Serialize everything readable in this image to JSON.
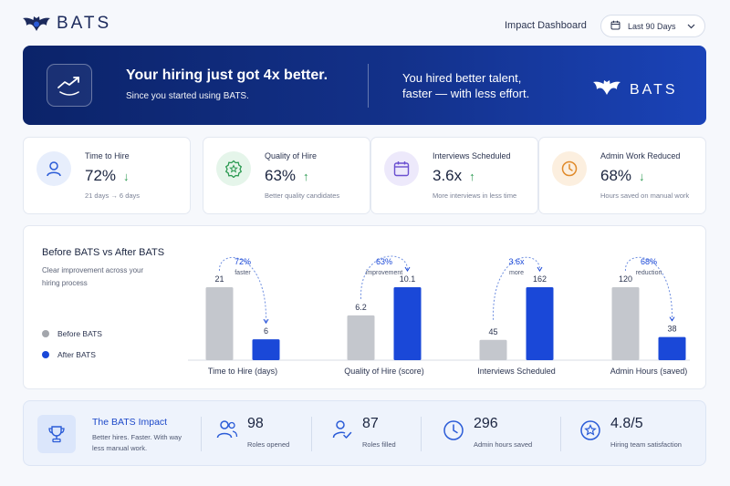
{
  "header": {
    "brand": "BATS",
    "title": "Impact Dashboard",
    "date_range": "Last 90 Days",
    "icons": [
      "bat-logo-icon",
      "calendar-icon",
      "chevron-down-icon"
    ]
  },
  "hero": {
    "title": "Your hiring just got 4x better.",
    "subtitle": "Since you started using BATS.",
    "tagline_1": "You hired better talent,",
    "tagline_2": "faster — with less effort.",
    "brand": "BATS",
    "icon": "trend-up-icon"
  },
  "kpis": [
    {
      "title": "Time to Hire",
      "value": "72%",
      "arrow": "↓",
      "sub": "21 days → 6 days",
      "icon": "user-icon",
      "color": "#2a5bd7",
      "bg": "#e7eefc"
    },
    {
      "title": "Quality of Hire",
      "value": "63%",
      "arrow": "↑",
      "sub": "Better quality candidates",
      "icon": "badge-star-icon",
      "color": "#2c9a52",
      "bg": "#e5f5ea"
    },
    {
      "title": "Interviews Scheduled",
      "value": "3.6x",
      "arrow": "↑",
      "sub": "More interviews in less time",
      "icon": "calendar-icon",
      "color": "#6a4fd0",
      "bg": "#ede9fb"
    },
    {
      "title": "Admin Work Reduced",
      "value": "68%",
      "arrow": "↓",
      "sub": "Hours saved on manual work",
      "icon": "clock-icon",
      "color": "#e08a2a",
      "bg": "#fcefdf"
    }
  ],
  "chart_data": {
    "type": "bar",
    "title": "Before BATS vs After BATS",
    "subtitle": "Clear improvement across your hiring process",
    "categories": [
      "Time to Hire (days)",
      "Quality of Hire (score)",
      "Interviews Scheduled",
      "Admin Hours (saved)"
    ],
    "series": [
      {
        "name": "Before BATS",
        "color": "#c4c7cd",
        "values": [
          21,
          6.2,
          45,
          120
        ]
      },
      {
        "name": "After BATS",
        "color": "#1a48d8",
        "values": [
          6,
          10.1,
          162,
          38
        ]
      }
    ],
    "annotations": [
      {
        "value": "72%",
        "label": "faster"
      },
      {
        "value": "63%",
        "label": "improvement"
      },
      {
        "value": "3.6x",
        "label": "more"
      },
      {
        "value": "68%",
        "label": "reduction"
      }
    ],
    "legend_position": "left",
    "grid": false
  },
  "impact": {
    "title": "The BATS Impact",
    "subtitle": "Better hires. Faster. With way less manual work.",
    "icon": "trophy-icon",
    "stats": [
      {
        "value": "98",
        "label": "Roles opened",
        "icon": "users-icon"
      },
      {
        "value": "87",
        "label": "Roles filled",
        "icon": "user-check-icon"
      },
      {
        "value": "296",
        "label": "Admin hours saved",
        "icon": "clock-icon"
      },
      {
        "value": "4.8/5",
        "label": "Hiring team satisfaction",
        "icon": "star-badge-icon"
      }
    ]
  },
  "colors": {
    "primary": "#1a48d8",
    "navy": "#0b2369",
    "gray_bar": "#c4c7cd"
  }
}
